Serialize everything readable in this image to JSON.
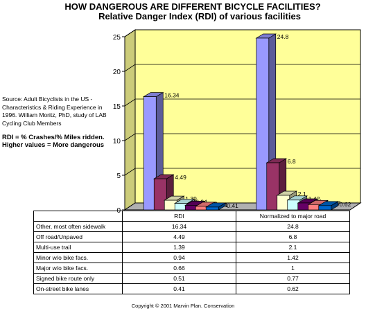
{
  "title": "HOW DANGEROUS ARE DIFFERENT BICYCLE FACILITIES?",
  "subtitle": "Relative Danger Index (RDI) of various facilities",
  "source_note": "Source: Adult Bicyclists in the US - Characteristics & Riding Experience in 1996. William Moritz, PhD, study of LAB Cycling Club Members",
  "formula_note": "RDI = % Crashes/% Miles ridden.",
  "interpretation_note": "Higher values = More dangerous",
  "copyright": "Copyright © 2001 Marvin Plan. Conservation",
  "colors": {
    "wall": "#ffff99",
    "floor": "#b0b0b0"
  },
  "chart_data": {
    "type": "bar",
    "categories": [
      "RDI",
      "Normalized to major road"
    ],
    "series": [
      {
        "name": "Other, most often sidewalk",
        "values": [
          16.34,
          24.8
        ],
        "color": "#9999ff"
      },
      {
        "name": "Off road/Unpaved",
        "values": [
          4.49,
          6.8
        ],
        "color": "#993366"
      },
      {
        "name": "Multi-use trail",
        "values": [
          1.39,
          2.1
        ],
        "color": "#ffffcc"
      },
      {
        "name": "Minor w/o bike facs.",
        "values": [
          0.94,
          1.42
        ],
        "color": "#ccffff"
      },
      {
        "name": "Major w/o bike facs.",
        "values": [
          0.66,
          1
        ],
        "color": "#660066"
      },
      {
        "name": "Signed bike route only",
        "values": [
          0.51,
          0.77
        ],
        "color": "#ff8080"
      },
      {
        "name": "On-street bike lanes",
        "values": [
          0.41,
          0.62
        ],
        "color": "#0066cc"
      }
    ],
    "data_labels": [
      [
        "16.34",
        "4.49",
        "1.39",
        "0.94",
        "0.66",
        "0.51",
        "0.41"
      ],
      [
        "24.8",
        "6.8",
        "2.1",
        "1.42",
        "1",
        "0.77",
        "0.62"
      ]
    ],
    "ylim": [
      0,
      25
    ],
    "yticks": [
      0,
      5,
      10,
      15,
      20,
      25
    ],
    "grid": true,
    "legend": "data table below chart"
  }
}
